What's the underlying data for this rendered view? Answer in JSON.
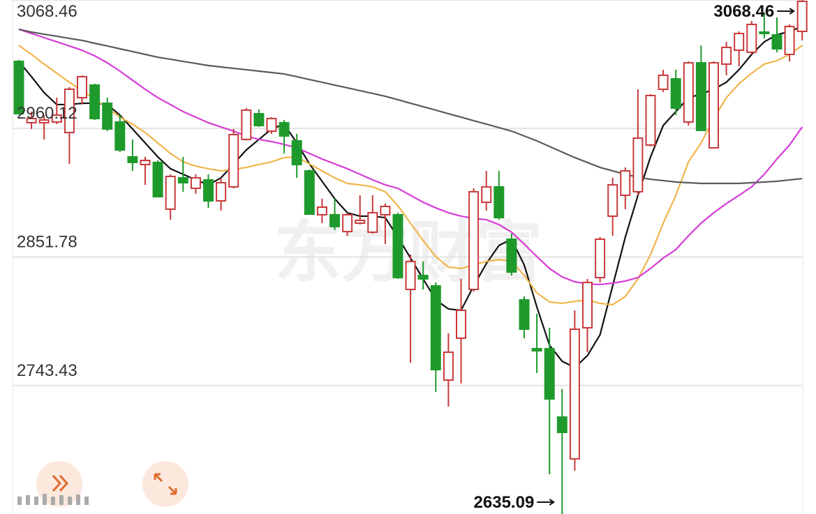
{
  "chart_data": {
    "type": "candlestick",
    "watermark": "东方财富",
    "ylim": [
      2635.09,
      3068.46
    ],
    "yticks": [
      3068.46,
      2960.12,
      2851.78,
      2743.43
    ],
    "grid": true,
    "up_color": "#c9383a",
    "down_color": "#1e9a2c",
    "hollow_up": true,
    "open": [
      3016.7,
      2965.0,
      2965.0,
      2965.6,
      2956.7,
      2986.1,
      2996.7,
      2981.4,
      2965.6,
      2936.2,
      2929.7,
      2931.5,
      2892.1,
      2918.5,
      2909.7,
      2916.8,
      2899.1,
      2910.9,
      2950.9,
      2972.6,
      2957.9,
      2965.0,
      2949.7,
      2924.4,
      2887.4,
      2887.4,
      2873.2,
      2880.3,
      2872.7,
      2887.4,
      2887.4,
      2824.4,
      2836.2,
      2827.4,
      2748.0,
      2783.3,
      2824.4,
      2897.9,
      2910.9,
      2866.8,
      2815.6,
      2774.5,
      2774.5,
      2716.8,
      2681.6,
      2792.1,
      2834.4,
      2886.2,
      2903.8,
      2906.8,
      2946.2,
      2993.2,
      3002.0,
      2965.6,
      3015.5,
      2943.8,
      3014.4,
      3026.1,
      3024.4,
      3041.4,
      3039.1,
      3022.6,
      3042.0
    ],
    "high": [
      3018.0,
      2974.4,
      2971.4,
      2986.1,
      2995.0,
      3005.0,
      2997.9,
      2986.1,
      2971.4,
      2950.9,
      2936.2,
      2933.2,
      2921.5,
      2936.2,
      2921.5,
      2921.5,
      2918.5,
      2959.7,
      2977.3,
      2976.1,
      2969.7,
      2967.3,
      2955.6,
      2925.6,
      2900.9,
      2900.9,
      2889.1,
      2903.8,
      2903.8,
      2896.8,
      2889.1,
      2853.8,
      2848.0,
      2830.3,
      2787.4,
      2833.3,
      2909.7,
      2924.4,
      2924.4,
      2871.5,
      2818.6,
      2803.9,
      2792.1,
      2740.4,
      2806.8,
      2833.3,
      2868.5,
      2918.5,
      2927.3,
      2993.2,
      2989.1,
      3009.7,
      3009.7,
      3016.7,
      3030.2,
      3016.7,
      3033.2,
      3042.0,
      3050.8,
      3056.7,
      3053.8,
      3047.9,
      3068.46
    ],
    "low": [
      2971.8,
      2959.7,
      2950.9,
      2963.8,
      2930.3,
      2980.3,
      2967.3,
      2957.9,
      2940.3,
      2924.4,
      2912.6,
      2902.1,
      2883.2,
      2906.8,
      2905.0,
      2893.2,
      2890.9,
      2909.7,
      2950.0,
      2961.4,
      2955.6,
      2939.1,
      2918.5,
      2887.4,
      2880.3,
      2874.4,
      2869.7,
      2879.1,
      2871.5,
      2862.7,
      2833.3,
      2762.7,
      2824.4,
      2738.0,
      2725.7,
      2745.1,
      2822.7,
      2890.9,
      2883.2,
      2836.2,
      2783.3,
      2753.9,
      2668.6,
      2635.09,
      2671.6,
      2771.5,
      2830.3,
      2869.7,
      2892.1,
      2903.8,
      2945.0,
      2990.8,
      2971.4,
      2962.6,
      2957.9,
      2943.8,
      3005.0,
      3012.6,
      3022.6,
      3036.1,
      3024.4,
      3016.7,
      3034.4
    ],
    "close": [
      2972.6,
      2968.5,
      2967.3,
      2971.4,
      2993.2,
      3003.8,
      2968.5,
      2959.7,
      2942.0,
      2931.5,
      2933.2,
      2902.6,
      2919.7,
      2914.4,
      2918.5,
      2899.1,
      2914.4,
      2955.0,
      2975.6,
      2962.6,
      2968.5,
      2953.8,
      2929.7,
      2887.9,
      2893.8,
      2877.4,
      2887.4,
      2882.7,
      2889.1,
      2894.4,
      2834.4,
      2848.0,
      2833.3,
      2756.8,
      2771.5,
      2806.8,
      2906.8,
      2910.9,
      2885.0,
      2839.1,
      2790.9,
      2772.7,
      2732.1,
      2703.9,
      2790.9,
      2830.3,
      2866.8,
      2912.6,
      2924.4,
      2952.0,
      2987.9,
      3005.0,
      2977.3,
      3015.5,
      2958.5,
      3015.5,
      3028.5,
      3040.2,
      3047.9,
      3040.2,
      3027.3,
      3046.1,
      3067.3
    ],
    "lines": [
      {
        "color": "#111111",
        "values": [
          3016.7,
          3003.8,
          2990.3,
          2980.3,
          2980.3,
          2981.4,
          2981.4,
          2980.3,
          2971.4,
          2959.7,
          2947.9,
          2936.2,
          2926.2,
          2921.5,
          2916.8,
          2912.6,
          2918.5,
          2930.3,
          2942.0,
          2950.9,
          2959.7,
          2963.8,
          2947.9,
          2930.3,
          2915.6,
          2900.9,
          2889.1,
          2886.2,
          2886.2,
          2885.0,
          2868.5,
          2850.9,
          2833.3,
          2815.6,
          2808.0,
          2806.8,
          2827.4,
          2846.2,
          2861.5,
          2866.8,
          2845.0,
          2809.7,
          2777.4,
          2763.9,
          2758.6,
          2768.6,
          2786.2,
          2827.4,
          2868.5,
          2903.8,
          2936.2,
          2962.6,
          2974.4,
          2986.1,
          2989.1,
          2993.2,
          2999.1,
          3009.7,
          3022.6,
          3033.2,
          3039.1,
          3042.0,
          3046.1
        ]
      },
      {
        "color": "#f0b54a",
        "values": [
          3030.2,
          3022.6,
          3014.4,
          3006.7,
          2999.1,
          2992.0,
          2985.0,
          2977.3,
          2969.7,
          2963.8,
          2956.7,
          2947.9,
          2939.1,
          2932.0,
          2928.5,
          2926.2,
          2924.4,
          2925.6,
          2927.3,
          2929.7,
          2932.0,
          2935.6,
          2936.2,
          2930.3,
          2924.4,
          2918.5,
          2913.8,
          2912.6,
          2910.9,
          2906.8,
          2895.0,
          2880.3,
          2865.6,
          2852.1,
          2843.3,
          2842.1,
          2845.0,
          2848.0,
          2849.7,
          2848.0,
          2836.2,
          2821.5,
          2813.9,
          2812.7,
          2814.4,
          2815.6,
          2812.7,
          2811.5,
          2818.6,
          2833.3,
          2853.8,
          2880.3,
          2903.8,
          2932.0,
          2947.9,
          2968.5,
          2986.1,
          2997.9,
          3006.7,
          3014.4,
          3017.3,
          3022.6,
          3030.2
        ]
      },
      {
        "color": "#d63bd6",
        "values": [
          3043.8,
          3040.2,
          3036.7,
          3033.2,
          3029.7,
          3026.1,
          3021.4,
          3015.5,
          3008.5,
          3000.8,
          2993.2,
          2986.1,
          2980.3,
          2974.4,
          2969.7,
          2965.0,
          2961.4,
          2957.9,
          2953.8,
          2950.9,
          2949.1,
          2946.7,
          2943.8,
          2939.1,
          2934.4,
          2930.3,
          2926.2,
          2921.5,
          2916.8,
          2912.6,
          2909.7,
          2903.8,
          2897.9,
          2893.2,
          2889.1,
          2886.2,
          2884.4,
          2883.2,
          2879.1,
          2872.7,
          2862.7,
          2852.1,
          2842.1,
          2835.0,
          2830.9,
          2829.1,
          2828.6,
          2829.7,
          2831.5,
          2834.4,
          2842.1,
          2850.9,
          2858.0,
          2869.7,
          2880.3,
          2889.1,
          2896.8,
          2903.8,
          2910.9,
          2921.5,
          2934.4,
          2946.2,
          2961.4
        ]
      },
      {
        "color": "#5a5a5a",
        "values": [
          3043.8,
          3041.4,
          3039.6,
          3037.9,
          3036.1,
          3034.4,
          3032.0,
          3029.7,
          3027.3,
          3025.0,
          3022.6,
          3020.2,
          3018.5,
          3016.7,
          3015.0,
          3013.2,
          3012.0,
          3010.8,
          3009.7,
          3008.5,
          3007.3,
          3006.1,
          3003.8,
          3001.4,
          2999.1,
          2996.7,
          2994.4,
          2992.0,
          2989.7,
          2987.3,
          2984.4,
          2981.4,
          2978.5,
          2975.6,
          2972.6,
          2969.7,
          2966.7,
          2963.8,
          2960.9,
          2957.9,
          2953.8,
          2949.7,
          2945.0,
          2940.3,
          2935.6,
          2931.5,
          2927.3,
          2924.4,
          2921.5,
          2919.1,
          2917.3,
          2916.2,
          2915.0,
          2914.4,
          2913.8,
          2913.8,
          2913.8,
          2913.8,
          2914.4,
          2915.0,
          2915.6,
          2916.8,
          2917.9
        ]
      }
    ],
    "annotations": [
      {
        "label": "3068.46",
        "value": 3068.46
      },
      {
        "label": "2635.09",
        "value": 2635.09
      }
    ]
  }
}
